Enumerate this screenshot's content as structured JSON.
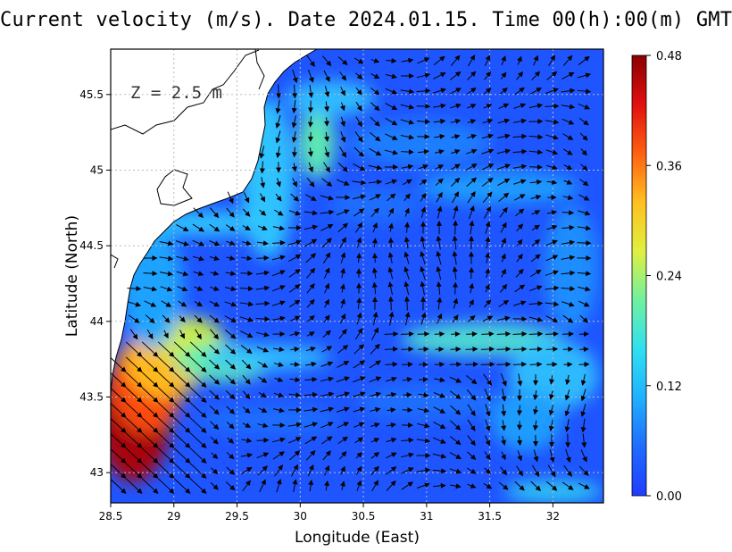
{
  "title": "Current velocity (m/s). Date 2024.01.15. Time 00(h):00(m) GMT",
  "depth_label": "Z = 2.5 m",
  "xlabel": "Longitude (East)",
  "ylabel": "Latitude (North)",
  "chart_data": {
    "type": "heatmap",
    "title": "Current velocity (m/s). Date 2024.01.15. Time 00(h):00(m) GMT",
    "xlabel": "Longitude (East)",
    "ylabel": "Latitude (North)",
    "xlim": [
      28.5,
      32.4
    ],
    "ylim": [
      42.8,
      45.8
    ],
    "x_ticks": [
      "28.5",
      "29",
      "29.5",
      "30",
      "30.5",
      "31",
      "31.5",
      "32"
    ],
    "x_tick_values": [
      28.5,
      29,
      29.5,
      30,
      30.5,
      31,
      31.5,
      32
    ],
    "y_ticks": [
      "43",
      "43.5",
      "44",
      "44.5",
      "45",
      "45.5"
    ],
    "y_tick_values": [
      43,
      43.5,
      44,
      44.5,
      45,
      45.5
    ],
    "grid": true,
    "colorbar": {
      "min": 0.0,
      "max": 0.48,
      "ticks": [
        "0.00",
        "0.12",
        "0.24",
        "0.36",
        "0.48"
      ],
      "tick_values": [
        0.0,
        0.12,
        0.24,
        0.36,
        0.48
      ],
      "colors": [
        "#1f3cff",
        "#1f6cff",
        "#20b0ff",
        "#30e0f0",
        "#70f0a0",
        "#e0f040",
        "#ffc020",
        "#ff6010",
        "#e01010",
        "#8a0000"
      ]
    },
    "land_color": "#ffffff",
    "coastline_color": "#000000",
    "arrow_color": "#000000"
  }
}
